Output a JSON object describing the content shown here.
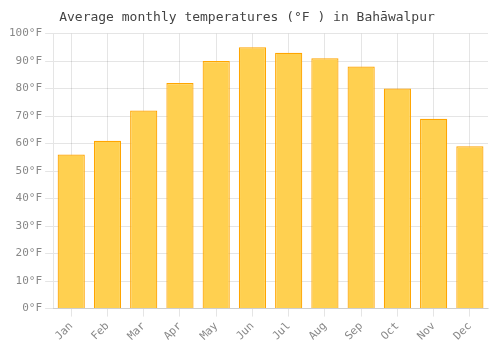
{
  "chart_data": {
    "type": "bar",
    "title": "Average monthly temperatures (°F ) in Bahāwalpur",
    "categories": [
      "Jan",
      "Feb",
      "Mar",
      "Apr",
      "May",
      "Jun",
      "Jul",
      "Aug",
      "Sep",
      "Oct",
      "Nov",
      "Dec"
    ],
    "values": [
      56,
      61,
      72,
      82,
      90,
      95,
      93,
      91,
      88,
      80,
      69,
      59
    ],
    "color": "#FFD050",
    "ylim": [
      0,
      100
    ],
    "yticks": [
      {
        "value": 0,
        "label": "0°F"
      },
      {
        "value": 10,
        "label": "10°F"
      },
      {
        "value": 20,
        "label": "20°F"
      },
      {
        "value": 30,
        "label": "30°F"
      },
      {
        "value": 40,
        "label": "40°F"
      },
      {
        "value": 50,
        "label": "50°F"
      },
      {
        "value": 60,
        "label": "60°F"
      },
      {
        "value": 70,
        "label": "70°F"
      },
      {
        "value": 80,
        "label": "80°F"
      },
      {
        "value": 90,
        "label": "90°F"
      },
      {
        "value": 100,
        "label": "100°F"
      }
    ],
    "grid": true
  }
}
